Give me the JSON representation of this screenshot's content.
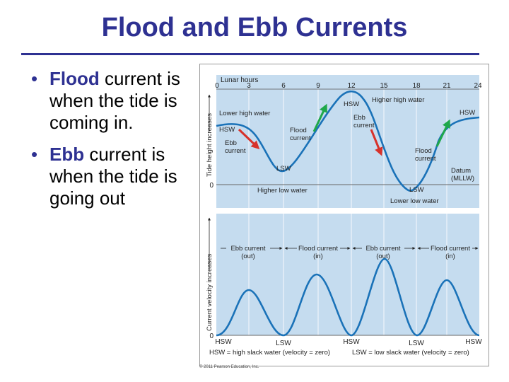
{
  "slide": {
    "title": "Flood and Ebb Currents",
    "bullets": [
      {
        "term": "Flood",
        "text": " current is when the tide is coming in."
      },
      {
        "term": "Ebb",
        "text": " current is when the tide is going out"
      }
    ],
    "copyright": "© 2011 Pearson Education, Inc."
  },
  "figure": {
    "top_panel": {
      "axis_title": "Lunar hours",
      "hours": [
        "0",
        "3",
        "6",
        "9",
        "12",
        "15",
        "18",
        "21",
        "24"
      ],
      "ylabel": "Tide height increases",
      "zero_label": "0",
      "labels": {
        "lower_high_water": "Lower high water",
        "hsw_left": "HSW",
        "ebb_left_1": "Ebb",
        "ebb_left_2": "current",
        "lsw_1": "LSW",
        "higher_low_water": "Higher low water",
        "flood_1a": "Flood",
        "flood_1b": "current",
        "hsw_mid": "HSW",
        "higher_high_water": "Higher high water",
        "ebb_mid_1": "Ebb",
        "ebb_mid_2": "current",
        "lsw_2": "LSW",
        "lower_low_water": "Lower low water",
        "flood_2a": "Flood",
        "flood_2b": "current",
        "hsw_right": "HSW",
        "datum_1": "Datum",
        "datum_2": "(MLLW)"
      }
    },
    "bottom_panel": {
      "ylabel": "Current velocity increases",
      "zero_label": "0",
      "phases": [
        {
          "name": "Ebb current",
          "dir": "(out)"
        },
        {
          "name": "Flood current",
          "dir": "(in)"
        },
        {
          "name": "Ebb current",
          "dir": "(out)"
        },
        {
          "name": "Flood current",
          "dir": "(in)"
        }
      ],
      "xticks": [
        "HSW",
        "LSW",
        "HSW",
        "LSW",
        "HSW"
      ],
      "legend_left": "HSW = high slack water (velocity = zero)",
      "legend_right": "LSW = low slack water (velocity = zero)"
    },
    "colors": {
      "panel_bg": "#c5dcef",
      "curve": "#1a72b8",
      "flood_arrow": "#1fa84a",
      "ebb_arrow": "#d7322b"
    }
  }
}
